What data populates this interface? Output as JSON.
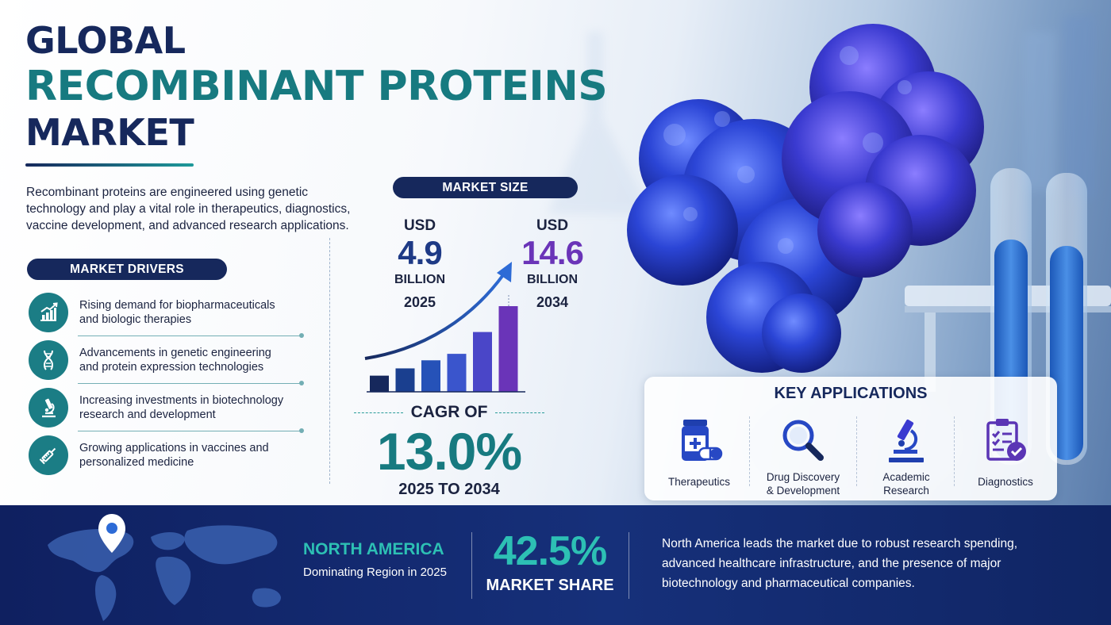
{
  "title": {
    "line1": "GLOBAL",
    "line2": "RECOMBINANT PROTEINS",
    "line3": "MARKET"
  },
  "intro": "Recombinant proteins are engineered using genetic technology and play a vital role in therapeutics, diagnostics, vaccine development, and advanced research applications.",
  "drivers": {
    "heading": "MARKET DRIVERS",
    "items": [
      {
        "line1": "Rising demand for biopharmaceuticals",
        "line2": "and biologic therapies",
        "icon": "growth-chart-icon"
      },
      {
        "line1": "Advancements in genetic engineering",
        "line2": "and protein expression technologies",
        "icon": "dna-icon"
      },
      {
        "line1": "Increasing investments in biotechnology",
        "line2": "research and development",
        "icon": "microscope-icon"
      },
      {
        "line1": "Growing applications in vaccines and",
        "line2": "personalized medicine",
        "icon": "syringe-icon"
      }
    ]
  },
  "market_size": {
    "heading": "MARKET SIZE",
    "start": {
      "currency": "USD",
      "value": "4.9",
      "unit": "BILLION",
      "year": "2025"
    },
    "end": {
      "currency": "USD",
      "value": "14.6",
      "unit": "BILLION",
      "year": "2034"
    },
    "growth_bars": [
      1,
      1.45,
      1.95,
      2.35,
      3.7,
      5.3
    ],
    "cagr_label": "CAGR OF",
    "cagr_value": "13.0%",
    "cagr_range": "2025 TO 2034"
  },
  "key_applications": {
    "heading": "KEY APPLICATIONS",
    "items": [
      {
        "line1": "Therapeutics",
        "line2": "",
        "icon": "medicine-bottle-icon"
      },
      {
        "line1": "Drug Discovery",
        "line2": "& Development",
        "icon": "magnifier-icon"
      },
      {
        "line1": "Academic",
        "line2": "Research",
        "icon": "microscope-icon"
      },
      {
        "line1": "Diagnostics",
        "line2": "",
        "icon": "clipboard-check-icon"
      }
    ]
  },
  "region": {
    "name": "NORTH AMERICA",
    "subtitle": "Dominating Region in 2025",
    "share_value": "42.5%",
    "share_label": "MARKET SHARE",
    "description": "North America leads the market due to robust research spending, advanced healthcare infrastructure, and the presence of major biotechnology and pharmaceutical companies.",
    "icon": "location-pin-icon"
  },
  "colors": {
    "navy": "#16285c",
    "teal": "#177a80",
    "teal_bright": "#2dc0b4",
    "purple": "#6a34b8",
    "protein_blue": "#2b45d6"
  }
}
